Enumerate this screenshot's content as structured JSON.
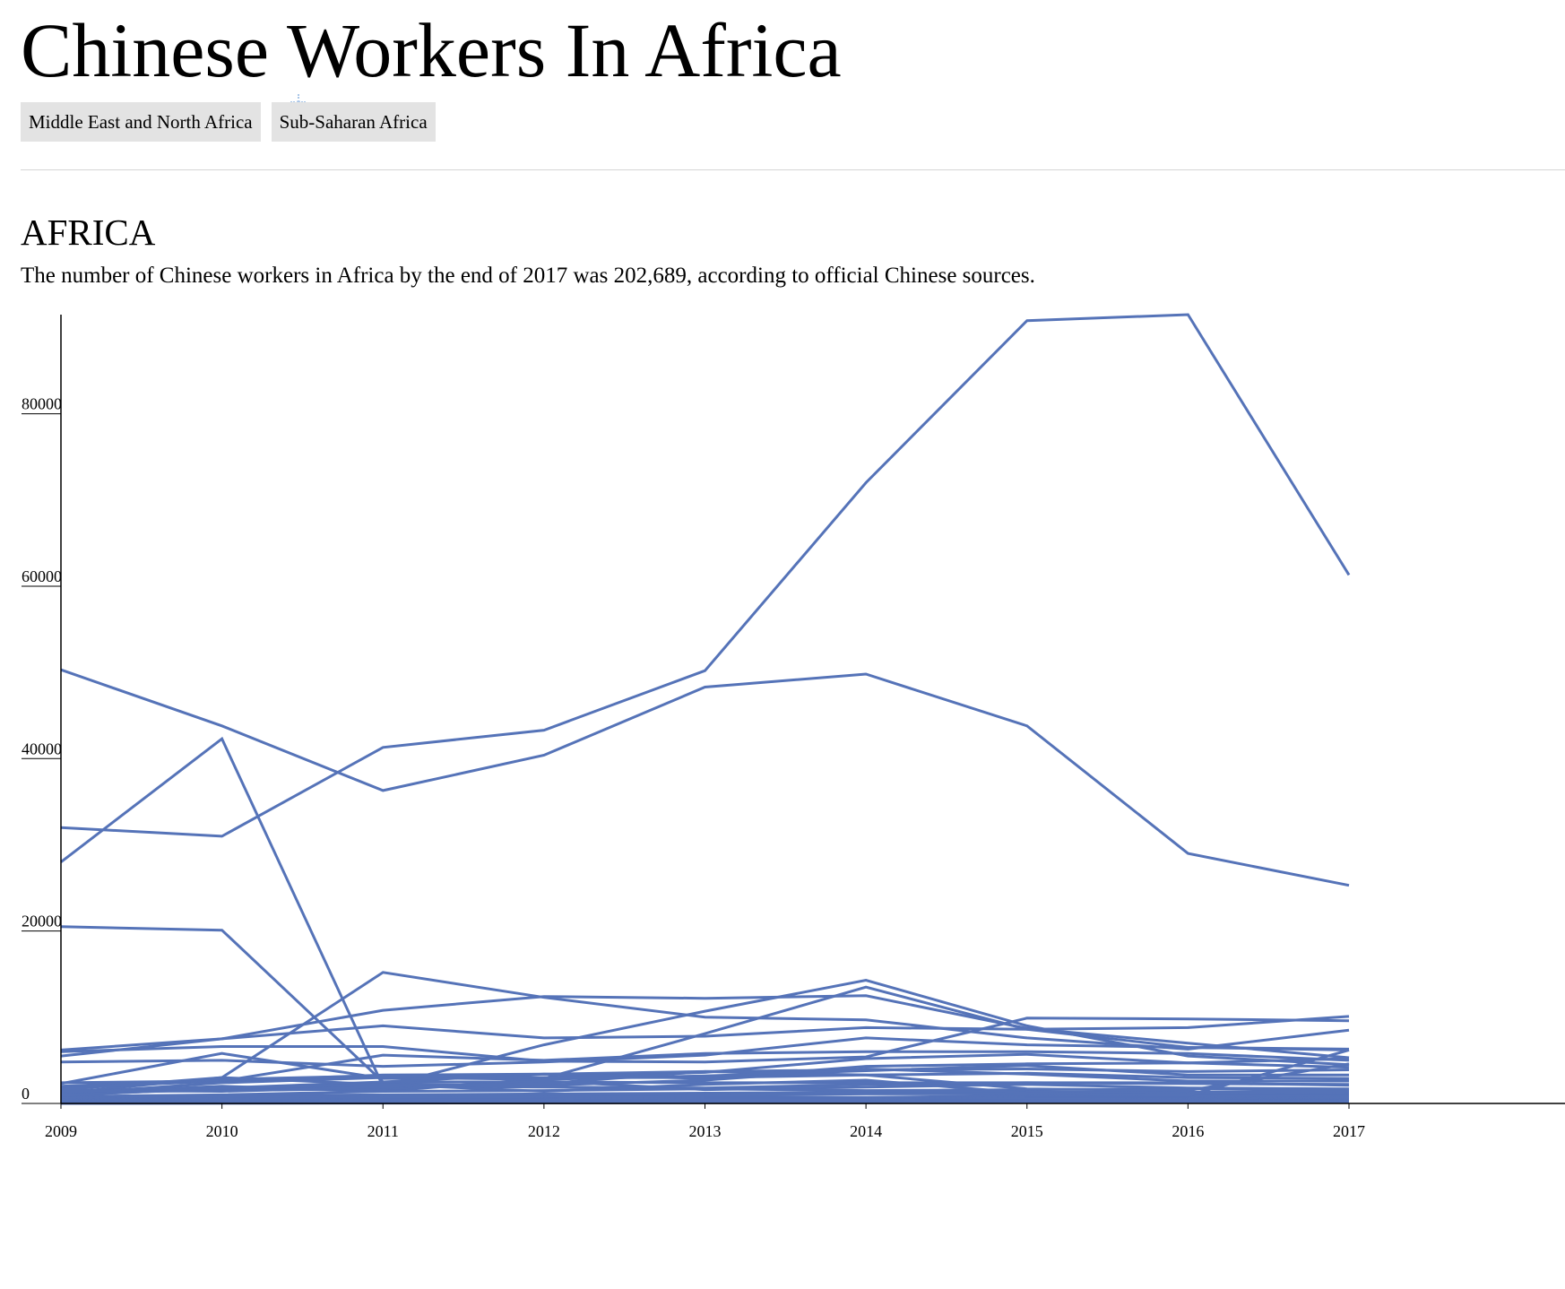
{
  "page": {
    "title": "Chinese Workers In Africa",
    "tabs": [
      "Middle East and North Africa",
      "Sub-Saharan Africa"
    ],
    "region_heading": "AFRICA",
    "subtitle": "The number of Chinese workers in Africa by the end of 2017 was 202,689, according to official Chinese sources."
  },
  "colors": {
    "line": "#5573b8",
    "axis": "#000000",
    "tab_bg": "#e3e3e3",
    "divider": "#d6d6d6"
  },
  "chart_data": {
    "type": "line",
    "x": [
      2009,
      2010,
      2011,
      2012,
      2013,
      2014,
      2015,
      2016,
      2017
    ],
    "ylim": [
      0,
      91500
    ],
    "yticks": [
      0,
      20000,
      40000,
      60000,
      80000
    ],
    "title": "",
    "xlabel": "",
    "ylabel": "",
    "legend": "none",
    "grid": false,
    "series": [
      {
        "values": [
          28000,
          42300,
          2000,
          6800,
          10700,
          14300,
          9000,
          5500,
          4500
        ]
      },
      {
        "values": [
          32000,
          31000,
          41300,
          43300,
          50200,
          72000,
          90800,
          91500,
          61300
        ]
      },
      {
        "values": [
          50300,
          43800,
          36300,
          40400,
          48300,
          49800,
          43800,
          29000,
          25300
        ]
      },
      {
        "values": [
          20500,
          20100,
          2500,
          2500,
          2400,
          2400,
          2400,
          2300,
          2200
        ]
      },
      {
        "values": [
          1200,
          3000,
          15200,
          12300,
          10000,
          9700,
          7600,
          6300,
          8500
        ]
      },
      {
        "values": [
          5500,
          7500,
          10800,
          12400,
          12200,
          12500,
          8700,
          7000,
          5300
        ]
      },
      {
        "values": [
          6200,
          7500,
          9000,
          7600,
          7800,
          8800,
          8600,
          8800,
          10100
        ]
      },
      {
        "values": [
          6000,
          6600,
          6600,
          4900,
          4800,
          5400,
          9900,
          9800,
          9600
        ]
      },
      {
        "values": [
          4800,
          5000,
          4300,
          4800,
          5600,
          7600,
          6800,
          6500,
          6200
        ]
      },
      {
        "values": [
          1200,
          2000,
          1400,
          2900,
          8100,
          13500,
          8600,
          6500,
          6300
        ]
      },
      {
        "values": [
          2300,
          5800,
          2900,
          3000,
          3600,
          5200,
          5700,
          4700,
          5200
        ]
      },
      {
        "values": [
          1800,
          2600,
          5600,
          5000,
          5800,
          6000,
          6000,
          5800,
          5000
        ]
      },
      {
        "values": [
          1500,
          1800,
          2500,
          3400,
          2900,
          4300,
          4600,
          4700,
          4200
        ]
      },
      {
        "values": [
          2400,
          2600,
          3300,
          3400,
          3700,
          3900,
          4000,
          3700,
          3900
        ]
      },
      {
        "values": [
          1100,
          2400,
          3000,
          2800,
          3200,
          3800,
          4400,
          3300,
          3300
        ]
      },
      {
        "values": [
          2000,
          2800,
          3200,
          3000,
          3000,
          3300,
          3500,
          3000,
          2900
        ]
      },
      {
        "values": [
          1600,
          3000,
          2200,
          2100,
          2700,
          4000,
          3400,
          2600,
          2600
        ]
      },
      {
        "values": [
          1000,
          1700,
          2000,
          1900,
          1800,
          2200,
          2400,
          2400,
          2100
        ]
      },
      {
        "values": [
          1300,
          1500,
          1700,
          2600,
          1600,
          1900,
          2200,
          1800,
          1700
        ]
      },
      {
        "values": [
          800,
          1000,
          1400,
          1500,
          1700,
          1500,
          1600,
          1700,
          1500
        ]
      },
      {
        "values": [
          600,
          900,
          1000,
          1100,
          1200,
          1300,
          1300,
          1300,
          1300
        ]
      },
      {
        "values": [
          400,
          700,
          800,
          900,
          1000,
          1100,
          1100,
          1000,
          1100
        ]
      },
      {
        "values": [
          300,
          500,
          600,
          700,
          800,
          700,
          900,
          900,
          1000
        ]
      },
      {
        "values": [
          200,
          400,
          300,
          500,
          600,
          600,
          700,
          800,
          800
        ]
      },
      {
        "values": [
          150,
          300,
          400,
          400,
          500,
          500,
          600,
          600,
          700
        ]
      },
      {
        "values": [
          100,
          200,
          300,
          300,
          400,
          400,
          500,
          500,
          600
        ]
      },
      {
        "values": [
          80,
          150,
          200,
          250,
          300,
          300,
          350,
          400,
          450
        ]
      },
      {
        "values": [
          60,
          100,
          150,
          200,
          250,
          250,
          300,
          300,
          350
        ]
      },
      {
        "values": [
          40,
          80,
          100,
          150,
          200,
          200,
          250,
          250,
          300
        ]
      },
      {
        "values": [
          30,
          60,
          80,
          100,
          150,
          150,
          200,
          200,
          250
        ]
      },
      {
        "values": [
          20,
          40,
          60,
          80,
          100,
          100,
          150,
          150,
          200
        ]
      },
      {
        "values": [
          10,
          20,
          40,
          60,
          80,
          80,
          100,
          100,
          150
        ]
      },
      {
        "values": [
          1500,
          1400,
          1900,
          2300,
          3700,
          3300,
          1700,
          1500,
          4600
        ]
      },
      {
        "values": [
          900,
          1800,
          2200,
          1400,
          2200,
          2700,
          1200,
          900,
          6200
        ]
      }
    ]
  }
}
